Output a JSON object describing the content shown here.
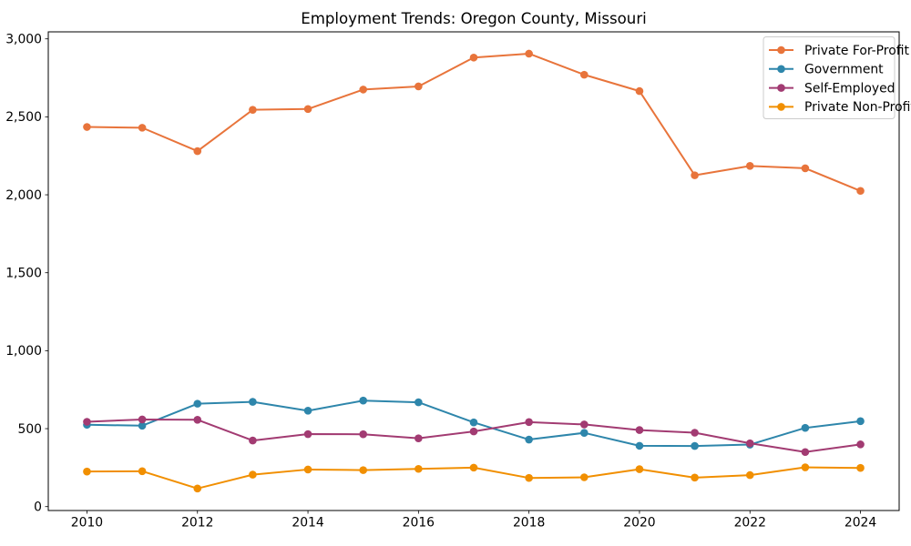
{
  "title": "Employment Trends: Oregon County, Missouri",
  "chart_data": {
    "type": "line",
    "title": "Employment Trends: Oregon County, Missouri",
    "xlabel": "",
    "ylabel": "",
    "x": [
      2010,
      2011,
      2012,
      2013,
      2014,
      2015,
      2016,
      2017,
      2018,
      2019,
      2020,
      2021,
      2022,
      2023,
      2024
    ],
    "xtick_values": [
      2010,
      2012,
      2014,
      2016,
      2018,
      2020,
      2022,
      2024
    ],
    "xtick_labels": [
      "2010",
      "2012",
      "2014",
      "2016",
      "2018",
      "2020",
      "2022",
      "2024"
    ],
    "ytick_values": [
      0,
      500,
      1000,
      1500,
      2000,
      2500,
      3000
    ],
    "ytick_labels": [
      "0",
      "500",
      "1,000",
      "1,500",
      "2,000",
      "2,500",
      "3,000"
    ],
    "xlim": [
      2009.3,
      2024.7
    ],
    "ylim": [
      -25,
      3045
    ],
    "grid": false,
    "legend_position": "upper right",
    "series": [
      {
        "name": "Private For-Profit",
        "color": "#E8743B",
        "values": [
          2435,
          2430,
          2280,
          2545,
          2550,
          2675,
          2695,
          2880,
          2905,
          2770,
          2665,
          2125,
          2185,
          2170,
          2025
        ]
      },
      {
        "name": "Government",
        "color": "#2E86AB",
        "values": [
          525,
          519,
          660,
          672,
          615,
          680,
          669,
          540,
          430,
          473,
          390,
          389,
          398,
          505,
          548
        ]
      },
      {
        "name": "Self-Employed",
        "color": "#A23B72",
        "values": [
          544,
          559,
          557,
          424,
          465,
          464,
          438,
          482,
          542,
          527,
          491,
          474,
          406,
          350,
          399
        ]
      },
      {
        "name": "Private Non-Profit",
        "color": "#F18F01",
        "values": [
          225,
          227,
          116,
          205,
          238,
          234,
          242,
          250,
          184,
          188,
          240,
          186,
          202,
          252,
          248
        ]
      }
    ]
  }
}
